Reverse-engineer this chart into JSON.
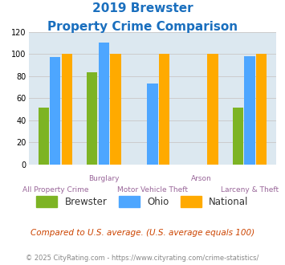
{
  "title_line1": "2019 Brewster",
  "title_line2": "Property Crime Comparison",
  "title_color": "#1a6fbe",
  "categories": [
    "All Property Crime",
    "Burglary",
    "Motor Vehicle Theft",
    "Arson",
    "Larceny & Theft"
  ],
  "top_labels": [
    "",
    "Burglary",
    "",
    "Arson",
    ""
  ],
  "bot_labels": [
    "All Property Crime",
    "",
    "Motor Vehicle Theft",
    "",
    "Larceny & Theft"
  ],
  "brewster": [
    51,
    83,
    null,
    null,
    51
  ],
  "ohio": [
    97,
    110,
    73,
    null,
    98
  ],
  "national": [
    100,
    100,
    100,
    100,
    100
  ],
  "brewster_color": "#7db424",
  "ohio_color": "#4da6ff",
  "national_color": "#ffaa00",
  "ylim": [
    0,
    120
  ],
  "yticks": [
    0,
    20,
    40,
    60,
    80,
    100,
    120
  ],
  "grid_color": "#cccccc",
  "plot_bg": "#dce8f0",
  "footnote1": "Compared to U.S. average. (U.S. average equals 100)",
  "footnote2": "© 2025 CityRating.com - https://www.cityrating.com/crime-statistics/",
  "footnote1_color": "#cc4400",
  "footnote2_color": "#888888",
  "label_color": "#996699",
  "bar_width": 0.22,
  "bar_gap": 0.02
}
